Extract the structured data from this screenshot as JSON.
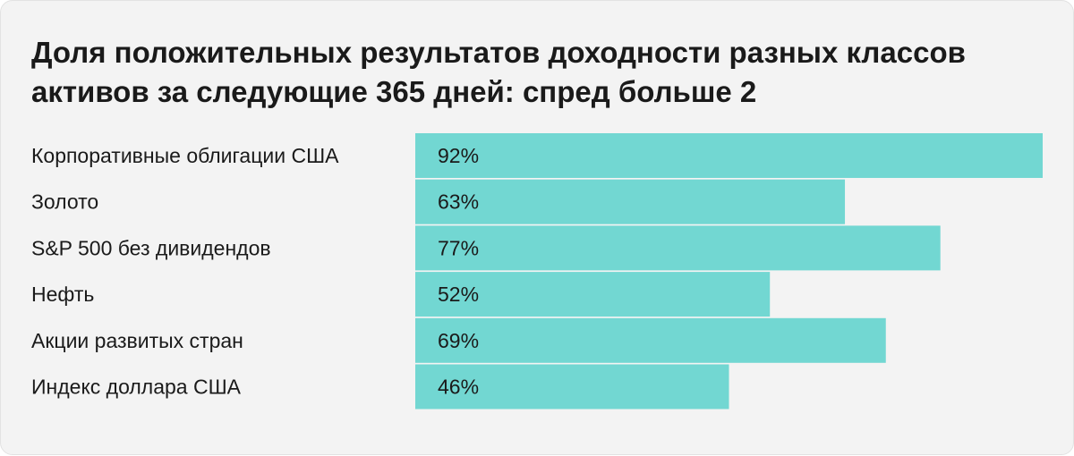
{
  "chart_data": {
    "type": "bar",
    "orientation": "horizontal",
    "title": "Доля положительных результатов доходности разных классов активов за следующие 365 дней: спред больше 2",
    "categories": [
      "Корпоративные облигации США",
      "Золото",
      "S&P 500 без дивидендов",
      "Нефть",
      "Акции развитых стран",
      "Индекс доллара США"
    ],
    "values": [
      92,
      63,
      77,
      52,
      69,
      46
    ],
    "value_labels": [
      "92%",
      "63%",
      "77%",
      "52%",
      "69%",
      "46%"
    ],
    "xlim": [
      0,
      92
    ],
    "grid": false,
    "legend": "none",
    "bar_color": "#72d7d2",
    "background_color": "#f3f3f3"
  }
}
